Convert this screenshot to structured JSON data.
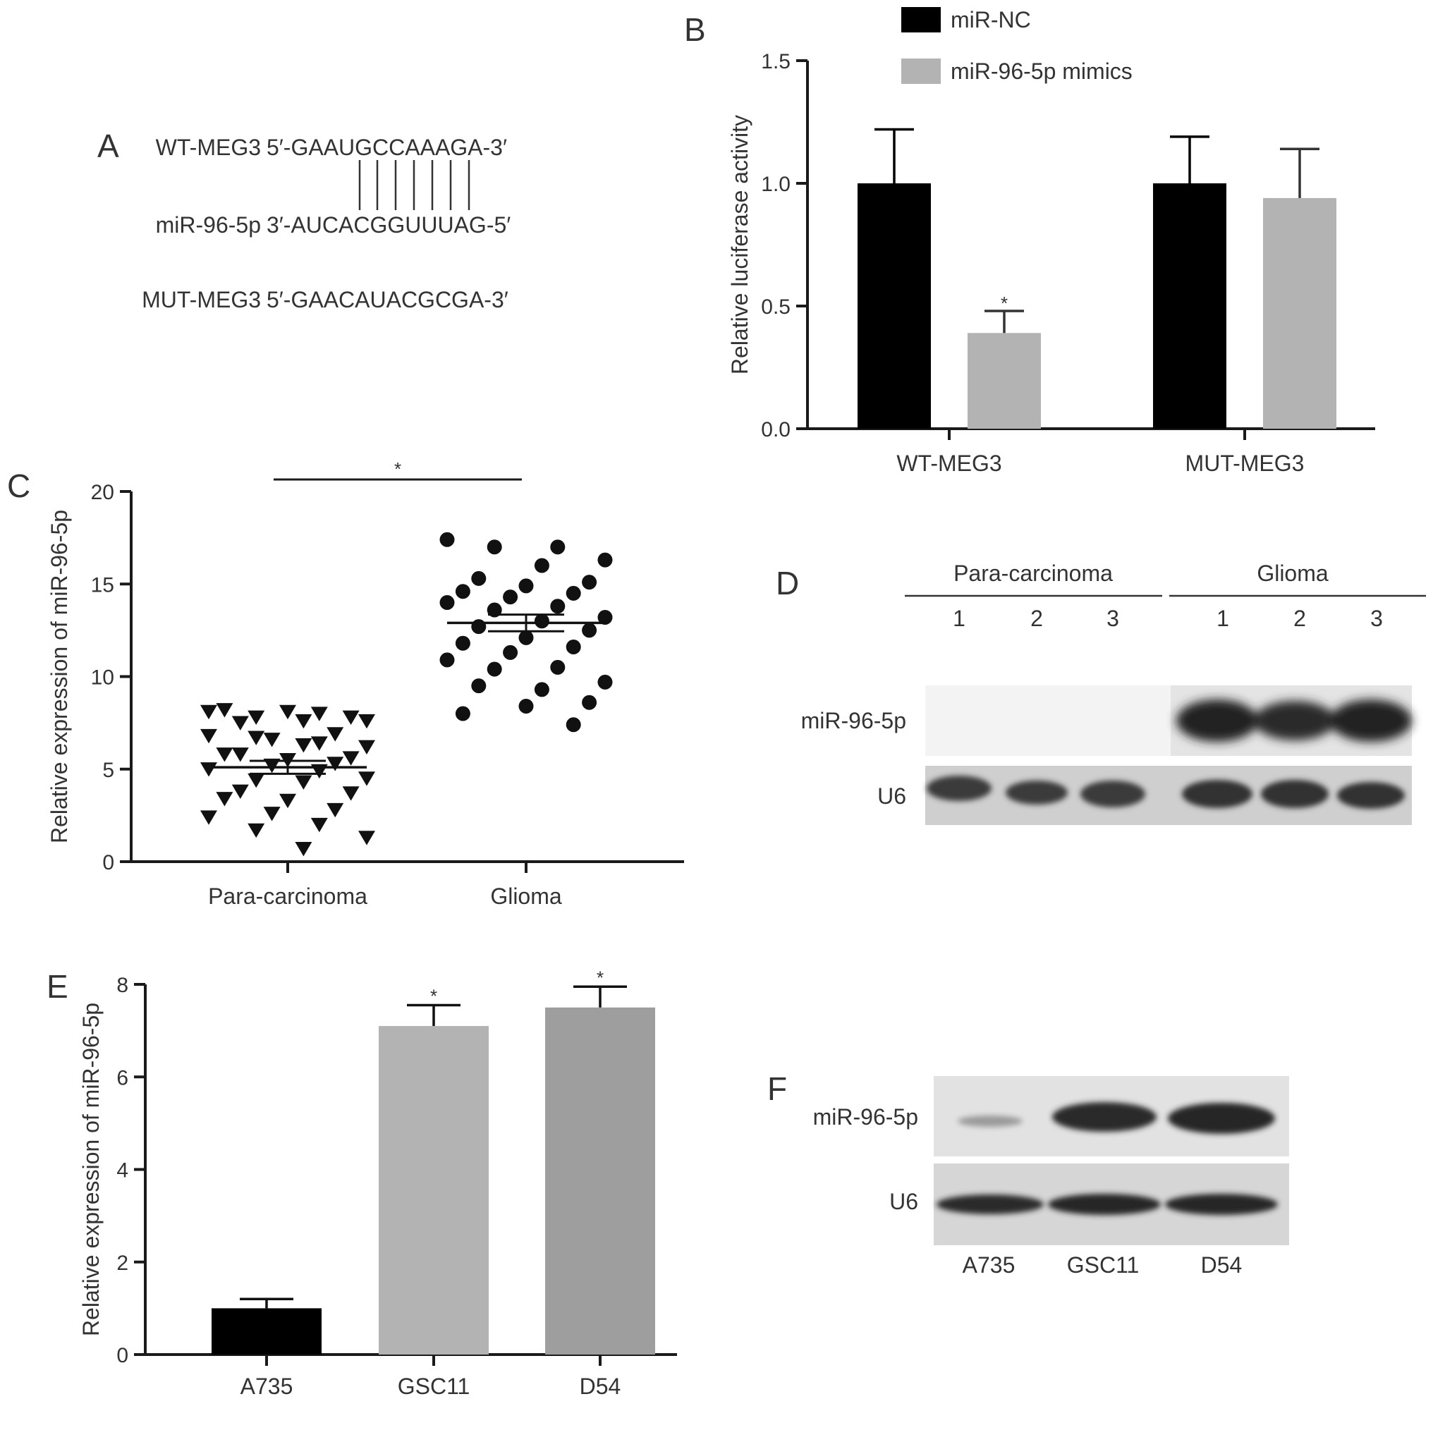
{
  "panels": {
    "A": {
      "letter": "A",
      "wt_name": "WT-MEG3",
      "wt_seq": "5′-GAAUGCCAAAGA-3′",
      "mir_name": "miR-96-5p",
      "mir_seq": "3′-AUCACGGUUUAG-5′",
      "mut_name": "MUT-MEG3",
      "mut_seq": "5′-GAACAUACGCGA-3′"
    },
    "B": {
      "letter": "B"
    },
    "C": {
      "letter": "C"
    },
    "D": {
      "letter": "D",
      "group1": "Para-carcinoma",
      "group2": "Glioma",
      "lanes": [
        "1",
        "2",
        "3",
        "1",
        "2",
        "3"
      ],
      "rows": [
        "miR-96-5p",
        "U6"
      ]
    },
    "E": {
      "letter": "E"
    },
    "F": {
      "letter": "F",
      "rows": [
        "miR-96-5p",
        "U6"
      ],
      "lanes": [
        "A735",
        "GSC11",
        "D54"
      ]
    }
  },
  "colors": {
    "black_bar": "#000000",
    "light_gray_bar": "#b3b3b3",
    "gray_bar": "#9e9e9e"
  },
  "chart_data": [
    {
      "panel": "B",
      "type": "bar",
      "categories": [
        "WT-MEG3",
        "MUT-MEG3"
      ],
      "series": [
        {
          "name": "miR-NC",
          "values": [
            1.0,
            1.0
          ],
          "errors": [
            0.22,
            0.19
          ],
          "color": "#000000"
        },
        {
          "name": "miR-96-5p mimics",
          "values": [
            0.39,
            0.94
          ],
          "errors": [
            0.09,
            0.2
          ],
          "color": "#b3b3b3"
        }
      ],
      "annotations": [
        {
          "category": "WT-MEG3",
          "series": "miR-96-5p mimics",
          "text": "*"
        }
      ],
      "ylabel": "Relative luciferase activity",
      "ylim": [
        0,
        1.5
      ],
      "yticks": [
        "0.0",
        "0.5",
        "1.0",
        "1.5"
      ],
      "legend": "top"
    },
    {
      "panel": "C",
      "type": "scatter",
      "categories": [
        "Para-carcinoma",
        "Glioma"
      ],
      "ylabel": "Relative expression of miR-96-5p",
      "ylim": [
        0,
        20
      ],
      "yticks": [
        "0",
        "5",
        "10",
        "15",
        "20"
      ],
      "significance": "*",
      "groups": [
        {
          "name": "Para-carcinoma",
          "marker": "triangle-down",
          "mean": 5.1,
          "sem": 0.35,
          "points": [
            8.1,
            8.0,
            7.8,
            7.6,
            7.6,
            7.5,
            7.8,
            8.1,
            8.2,
            6.9,
            6.6,
            6.8,
            6.4,
            6.7,
            6.2,
            6.3,
            5.8,
            5.6,
            5.5,
            5.8,
            5.3,
            5.2,
            5.0,
            4.9,
            4.4,
            4.5,
            4.3,
            3.8,
            3.7,
            3.3,
            3.4,
            2.8,
            2.6,
            2.4,
            2.0,
            1.7,
            1.3,
            0.7
          ]
        },
        {
          "name": "Glioma",
          "marker": "circle",
          "mean": 12.9,
          "sem": 0.45,
          "points": [
            17.4,
            17.0,
            17.0,
            16.3,
            16.0,
            15.3,
            15.1,
            14.9,
            14.6,
            14.5,
            14.3,
            14.0,
            13.8,
            13.6,
            13.2,
            13.0,
            12.7,
            12.5,
            12.1,
            11.8,
            11.6,
            11.3,
            10.9,
            10.5,
            10.4,
            9.7,
            9.3,
            9.5,
            8.6,
            8.4,
            8.0,
            7.4
          ]
        }
      ]
    },
    {
      "panel": "E",
      "type": "bar",
      "categories": [
        "A735",
        "GSC11",
        "D54"
      ],
      "values": [
        1.0,
        7.1,
        7.5
      ],
      "errors": [
        0.2,
        0.45,
        0.45
      ],
      "colors": [
        "#000000",
        "#b3b3b3",
        "#9e9e9e"
      ],
      "annotations": [
        "",
        "*",
        "*"
      ],
      "ylabel": "Relative expression of miR-96-5p",
      "ylim": [
        0,
        8
      ],
      "yticks": [
        "0",
        "2",
        "4",
        "6",
        "8"
      ]
    }
  ]
}
